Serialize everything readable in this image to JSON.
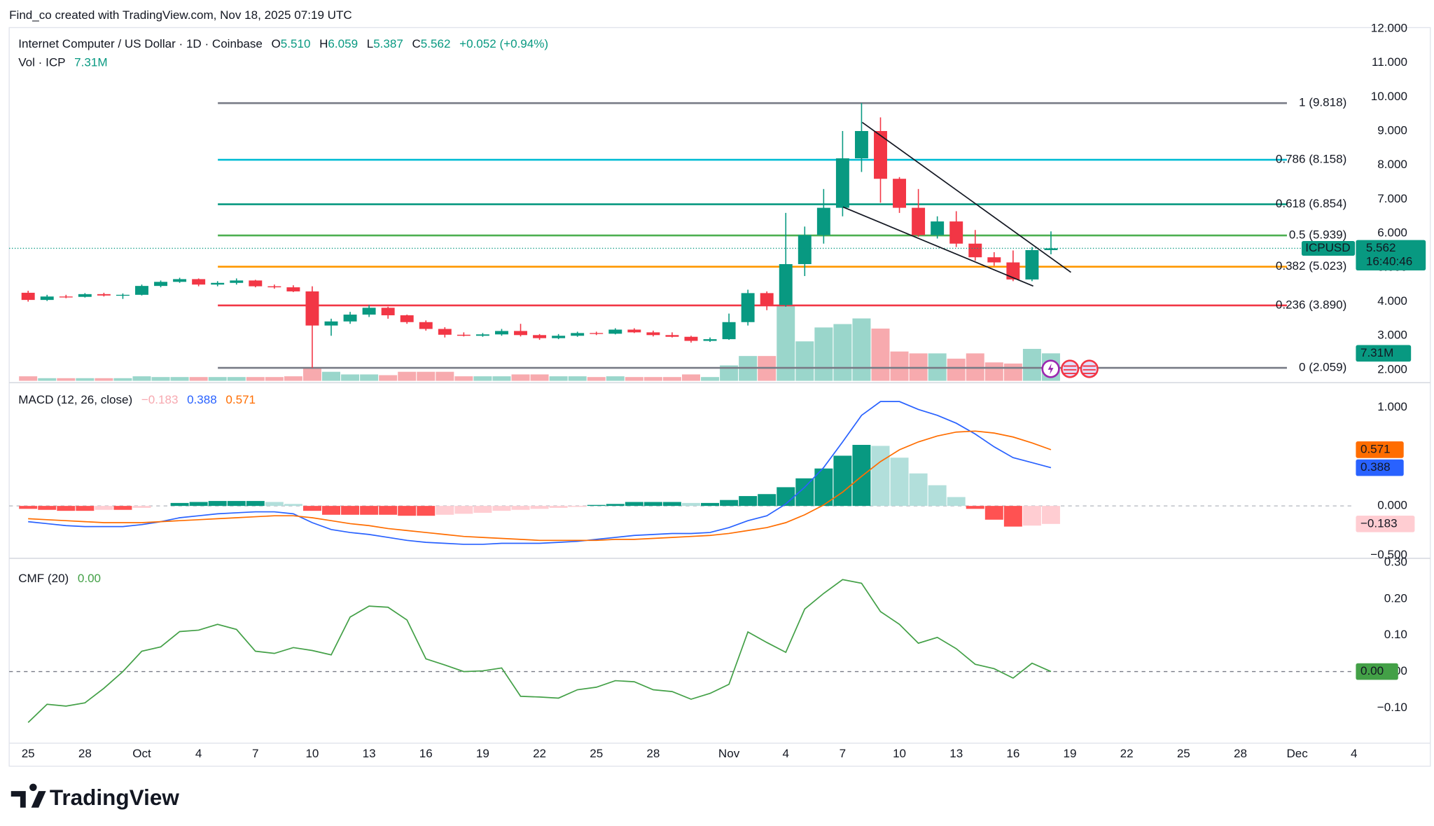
{
  "header": {
    "attribution": "Find_co created with TradingView.com, Nov 18, 2025 07:19 UTC",
    "symbol": "Internet Computer / US Dollar · 1D · Coinbase",
    "ohlc": [
      {
        "key": "O",
        "value": "5.510"
      },
      {
        "key": "H",
        "value": "6.059"
      },
      {
        "key": "L",
        "value": "5.387"
      },
      {
        "key": "C",
        "value": "5.562"
      }
    ],
    "change": "+0.052 (+0.94%)",
    "volume_label": "Vol · ICP"
  },
  "footer": {
    "brand": "TradingView"
  },
  "chart_data": [
    {
      "type": "candlestick",
      "xlim": [
        -1,
        70
      ],
      "xticks": [
        {
          "value": 0,
          "label": "25"
        },
        {
          "value": 3,
          "label": "28"
        },
        {
          "value": 6,
          "label": "Oct"
        },
        {
          "value": 9,
          "label": "4"
        },
        {
          "value": 12,
          "label": "7"
        },
        {
          "value": 15,
          "label": "10"
        },
        {
          "value": 18,
          "label": "13"
        },
        {
          "value": 21,
          "label": "16"
        },
        {
          "value": 24,
          "label": "19"
        },
        {
          "value": 27,
          "label": "22"
        },
        {
          "value": 30,
          "label": "25"
        },
        {
          "value": 33,
          "label": "28"
        },
        {
          "value": 37,
          "label": "Nov"
        },
        {
          "value": 40,
          "label": "4"
        },
        {
          "value": 43,
          "label": "7"
        },
        {
          "value": 46,
          "label": "10"
        },
        {
          "value": 49,
          "label": "13"
        },
        {
          "value": 52,
          "label": "16"
        },
        {
          "value": 55,
          "label": "19"
        },
        {
          "value": 58,
          "label": "22"
        },
        {
          "value": 61,
          "label": "25"
        },
        {
          "value": 64,
          "label": "28"
        },
        {
          "value": 67,
          "label": "Dec"
        },
        {
          "value": 70,
          "label": "4"
        }
      ],
      "ylim": [
        1.68,
        12.03
      ],
      "yticks": [
        {
          "value": 2,
          "label": "2.000"
        },
        {
          "value": 3,
          "label": "3.000"
        },
        {
          "value": 4,
          "label": "4.000"
        },
        {
          "value": 5,
          "label": "5.000"
        },
        {
          "value": 6,
          "label": "6.000"
        },
        {
          "value": 7,
          "label": "7.000"
        },
        {
          "value": 8,
          "label": "8.000"
        },
        {
          "value": 9,
          "label": "9.000"
        },
        {
          "value": 10,
          "label": "10.000"
        },
        {
          "value": 11,
          "label": "11.000"
        },
        {
          "value": 12,
          "label": "12.000"
        }
      ],
      "grid": false,
      "up_color": "#089981",
      "down_color": "#f23645",
      "volume_up_color": "#9ad6cb",
      "volume_down_color": "#f7aaae",
      "open": [
        4.26,
        4.05,
        4.15,
        4.14,
        4.22,
        4.18,
        4.2,
        4.46,
        4.58,
        4.66,
        4.5,
        4.55,
        4.62,
        4.45,
        4.42,
        4.3,
        3.3,
        3.42,
        3.62,
        3.82,
        3.6,
        3.4,
        3.2,
        3.03,
        3.0,
        3.04,
        3.14,
        3.02,
        2.93,
        3.0,
        3.08,
        3.06,
        3.18,
        3.1,
        3.02,
        2.97,
        2.85,
        2.9,
        3.4,
        4.25,
        3.9,
        5.1,
        5.95,
        6.75,
        8.2,
        9.0,
        7.6,
        6.75,
        5.95,
        6.35,
        5.7,
        5.3,
        5.15,
        4.65,
        5.51
      ],
      "high": [
        4.32,
        4.2,
        4.2,
        4.25,
        4.26,
        4.24,
        4.5,
        4.62,
        4.7,
        4.68,
        4.6,
        4.68,
        4.64,
        4.5,
        4.48,
        4.45,
        3.5,
        3.7,
        3.9,
        3.85,
        3.62,
        3.45,
        3.25,
        3.1,
        3.08,
        3.2,
        3.35,
        3.05,
        3.05,
        3.12,
        3.12,
        3.22,
        3.22,
        3.15,
        3.1,
        3.0,
        2.95,
        3.65,
        4.35,
        4.3,
        6.6,
        6.2,
        7.3,
        9.0,
        9.818,
        9.4,
        7.65,
        7.3,
        6.5,
        6.65,
        6.1,
        5.45,
        5.5,
        5.6,
        6.059
      ],
      "low": [
        4.0,
        4.02,
        4.1,
        4.12,
        4.15,
        4.08,
        4.18,
        4.42,
        4.55,
        4.45,
        4.45,
        4.5,
        4.42,
        4.38,
        4.28,
        2.059,
        3.0,
        3.35,
        3.55,
        3.5,
        3.35,
        3.15,
        2.95,
        2.98,
        2.97,
        3.0,
        2.98,
        2.88,
        2.9,
        2.97,
        3.02,
        3.04,
        3.08,
        2.98,
        2.95,
        2.8,
        2.82,
        2.88,
        3.3,
        3.75,
        3.85,
        4.75,
        5.7,
        6.5,
        7.8,
        6.9,
        6.6,
        5.9,
        5.85,
        5.6,
        5.2,
        5.05,
        4.6,
        4.6,
        5.387
      ],
      "close": [
        4.05,
        4.15,
        4.14,
        4.22,
        4.18,
        4.2,
        4.46,
        4.58,
        4.66,
        4.5,
        4.55,
        4.62,
        4.45,
        4.42,
        4.3,
        3.3,
        3.42,
        3.62,
        3.82,
        3.6,
        3.4,
        3.2,
        3.03,
        3.0,
        3.04,
        3.14,
        3.02,
        2.93,
        3.0,
        3.08,
        3.06,
        3.18,
        3.1,
        3.02,
        2.97,
        2.85,
        2.9,
        3.4,
        4.25,
        3.9,
        5.1,
        5.95,
        6.75,
        8.2,
        9.0,
        7.6,
        6.75,
        5.95,
        6.35,
        5.7,
        5.3,
        5.15,
        4.65,
        5.51,
        5.562
      ],
      "volume": [
        1.2,
        0.7,
        0.7,
        0.7,
        0.7,
        0.7,
        1.2,
        1.0,
        1.0,
        1.0,
        1.0,
        1.0,
        1.0,
        1.0,
        1.2,
        3.4,
        2.4,
        1.7,
        1.7,
        1.5,
        2.4,
        2.4,
        2.4,
        1.2,
        1.2,
        1.2,
        1.7,
        1.7,
        1.2,
        1.2,
        1.0,
        1.2,
        1.0,
        1.0,
        1.0,
        1.7,
        1.0,
        4.1,
        6.6,
        6.6,
        20.0,
        10.5,
        14.2,
        15.1,
        16.6,
        13.9,
        7.8,
        7.3,
        7.3,
        5.9,
        7.3,
        4.9,
        4.6,
        8.5,
        7.31
      ],
      "volume_ylim": [
        0,
        94
      ],
      "volume_value_label": "7.31M",
      "last_price": {
        "symbol": "ICPUSD",
        "label": "5.562",
        "countdown": "16:40:46"
      },
      "fib_levels": [
        {
          "label": "1 (9.818)",
          "value": 9.818,
          "color": "#787b86"
        },
        {
          "label": "0.786 (8.158)",
          "value": 8.158,
          "color": "#00bcd4"
        },
        {
          "label": "0.618 (6.854)",
          "value": 6.854,
          "color": "#089981"
        },
        {
          "label": "0.5 (5.939)",
          "value": 5.939,
          "color": "#4caf50"
        },
        {
          "label": "0.382 (5.023)",
          "value": 5.023,
          "color": "#ff9800"
        },
        {
          "label": "0.236 (3.890)",
          "value": 3.89,
          "color": "#f23645"
        },
        {
          "label": "0 (2.059)",
          "value": 2.059,
          "color": "#787b86"
        }
      ]
    },
    {
      "type": "macd",
      "title": "MACD (12, 26, close)",
      "ylim": [
        -0.523,
        1.252
      ],
      "yticks": [
        {
          "value": 1,
          "label": "1.000"
        },
        {
          "value": 0,
          "label": "0.000"
        },
        {
          "value": -0.5,
          "label": "−0.500"
        }
      ],
      "histogram": {
        "values": [
          -0.03,
          -0.04,
          -0.05,
          -0.05,
          -0.04,
          -0.04,
          -0.02,
          0.0,
          0.03,
          0.04,
          0.05,
          0.05,
          0.05,
          0.04,
          0.02,
          -0.05,
          -0.09,
          -0.09,
          -0.09,
          -0.09,
          -0.1,
          -0.1,
          -0.09,
          -0.08,
          -0.07,
          -0.05,
          -0.04,
          -0.03,
          -0.02,
          -0.01,
          0.01,
          0.02,
          0.04,
          0.04,
          0.04,
          0.03,
          0.03,
          0.06,
          0.1,
          0.12,
          0.19,
          0.28,
          0.38,
          0.51,
          0.62,
          0.61,
          0.49,
          0.33,
          0.21,
          0.09,
          -0.03,
          -0.14,
          -0.21,
          -0.2,
          -0.183
        ],
        "value_label": "−0.183",
        "colors": [
          "#089981",
          "#b2dfdb",
          "#ff5252",
          "#ffcdd2"
        ],
        "label_color": "#f7a9b0"
      },
      "macd": {
        "values": [
          -0.16,
          -0.18,
          -0.2,
          -0.21,
          -0.21,
          -0.21,
          -0.19,
          -0.16,
          -0.12,
          -0.1,
          -0.08,
          -0.07,
          -0.06,
          -0.06,
          -0.08,
          -0.17,
          -0.24,
          -0.27,
          -0.29,
          -0.32,
          -0.35,
          -0.37,
          -0.38,
          -0.39,
          -0.39,
          -0.38,
          -0.38,
          -0.38,
          -0.37,
          -0.36,
          -0.34,
          -0.32,
          -0.3,
          -0.29,
          -0.28,
          -0.28,
          -0.27,
          -0.22,
          -0.15,
          -0.1,
          0.02,
          0.19,
          0.39,
          0.65,
          0.92,
          1.06,
          1.06,
          0.98,
          0.92,
          0.84,
          0.73,
          0.6,
          0.49,
          0.44,
          0.388
        ],
        "value_label": "0.388",
        "color": "#2962ff"
      },
      "signal": {
        "values": [
          -0.13,
          -0.14,
          -0.15,
          -0.16,
          -0.17,
          -0.17,
          -0.17,
          -0.16,
          -0.15,
          -0.14,
          -0.13,
          -0.12,
          -0.11,
          -0.1,
          -0.1,
          -0.12,
          -0.15,
          -0.18,
          -0.2,
          -0.23,
          -0.25,
          -0.27,
          -0.29,
          -0.31,
          -0.32,
          -0.33,
          -0.34,
          -0.35,
          -0.35,
          -0.35,
          -0.35,
          -0.34,
          -0.34,
          -0.33,
          -0.32,
          -0.31,
          -0.3,
          -0.28,
          -0.25,
          -0.22,
          -0.17,
          -0.09,
          0.01,
          0.14,
          0.3,
          0.45,
          0.57,
          0.65,
          0.71,
          0.75,
          0.76,
          0.74,
          0.7,
          0.64,
          0.571
        ],
        "value_label": "0.571",
        "color": "#ff6d00"
      }
    },
    {
      "type": "line",
      "title": "CMF (20)",
      "ylim": [
        -0.197,
        0.309
      ],
      "yticks": [
        {
          "value": 0.3,
          "label": "0.30"
        },
        {
          "value": 0.2,
          "label": "0.20"
        },
        {
          "value": 0.1,
          "label": "0.10"
        },
        {
          "value": 0,
          "label": "0.00"
        },
        {
          "value": -0.1,
          "label": "−0.10"
        }
      ],
      "values": [
        -0.14,
        -0.09,
        -0.095,
        -0.086,
        -0.046,
        0.0,
        0.056,
        0.068,
        0.11,
        0.114,
        0.13,
        0.116,
        0.056,
        0.05,
        0.066,
        0.058,
        0.046,
        0.15,
        0.18,
        0.177,
        0.142,
        0.035,
        0.018,
        0.0,
        0.002,
        0.01,
        -0.068,
        -0.07,
        -0.073,
        -0.05,
        -0.043,
        -0.025,
        -0.028,
        -0.05,
        -0.055,
        -0.076,
        -0.06,
        -0.035,
        0.109,
        0.08,
        0.053,
        0.172,
        0.215,
        0.253,
        0.243,
        0.165,
        0.13,
        0.078,
        0.094,
        0.063,
        0.02,
        0.008,
        -0.018,
        0.023,
        0.0
      ],
      "value_label": "0.00",
      "color": "#43a047"
    }
  ]
}
